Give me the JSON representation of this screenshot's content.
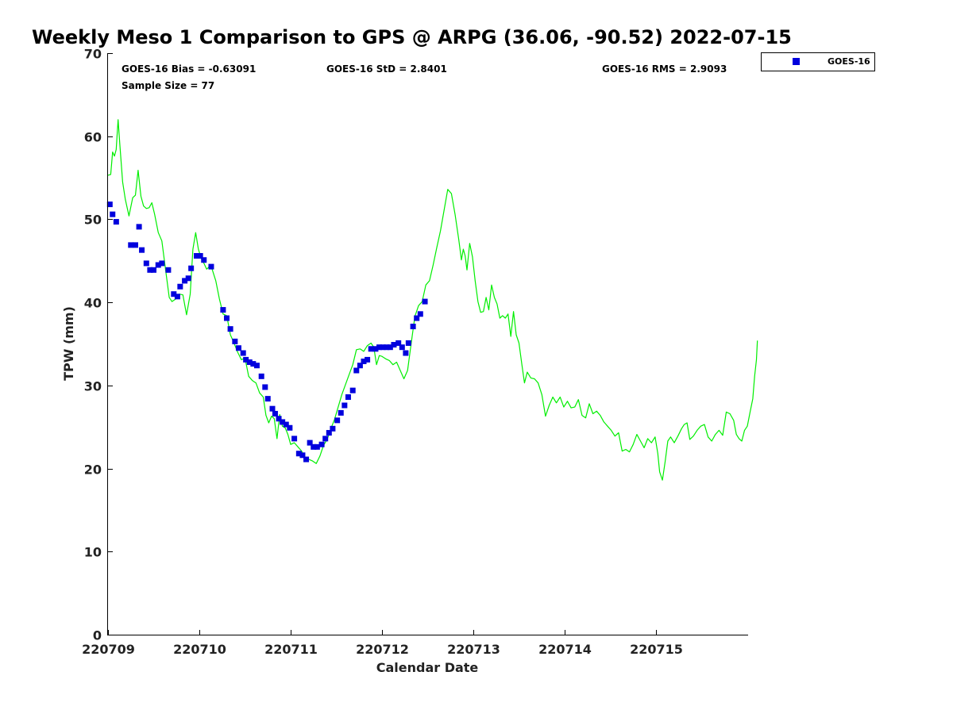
{
  "chart_data": {
    "type": "scatter",
    "title": "Weekly Meso 1 Comparison to GPS @ ARPG (36.06, -90.52) 2022-07-15",
    "xlabel": "Calendar Date",
    "ylabel": "TPW (mm)",
    "ylim": [
      0,
      70
    ],
    "xlim": [
      0,
      7
    ],
    "yticks": [
      0,
      10,
      20,
      30,
      40,
      50,
      60,
      70
    ],
    "xticks": [
      {
        "value": 0,
        "label": "220709"
      },
      {
        "value": 1,
        "label": "220710"
      },
      {
        "value": 2,
        "label": "220711"
      },
      {
        "value": 3,
        "label": "220712"
      },
      {
        "value": 4,
        "label": "220713"
      },
      {
        "value": 5,
        "label": "220714"
      },
      {
        "value": 6,
        "label": "220715"
      }
    ],
    "stats": {
      "bias": "GOES-16 Bias = -0.63091",
      "std": "GOES-16 StD = 2.8401",
      "rms": "GOES-16 RMS = 2.9093",
      "sample": "Sample Size = 77"
    },
    "legend": {
      "position": "top-right",
      "label": "GOES-16"
    },
    "colors": {
      "goes": "#0000dd",
      "gps": "#00ee00"
    },
    "grid": false,
    "series": [
      {
        "name": "GOES-16",
        "type": "scatter",
        "points": [
          [
            0.02,
            51.8
          ],
          [
            0.05,
            50.6
          ],
          [
            0.09,
            49.7
          ],
          [
            0.25,
            46.9
          ],
          [
            0.3,
            46.9
          ],
          [
            0.34,
            49.1
          ],
          [
            0.37,
            46.3
          ],
          [
            0.42,
            44.7
          ],
          [
            0.46,
            43.9
          ],
          [
            0.5,
            43.9
          ],
          [
            0.55,
            44.5
          ],
          [
            0.59,
            44.7
          ],
          [
            0.66,
            43.9
          ],
          [
            0.72,
            41.0
          ],
          [
            0.76,
            40.7
          ],
          [
            0.79,
            41.9
          ],
          [
            0.84,
            42.6
          ],
          [
            0.88,
            42.9
          ],
          [
            0.91,
            44.1
          ],
          [
            0.97,
            45.6
          ],
          [
            1.01,
            45.6
          ],
          [
            1.05,
            45.1
          ],
          [
            1.13,
            44.3
          ],
          [
            1.26,
            39.1
          ],
          [
            1.3,
            38.1
          ],
          [
            1.34,
            36.8
          ],
          [
            1.39,
            35.3
          ],
          [
            1.43,
            34.5
          ],
          [
            1.48,
            33.9
          ],
          [
            1.51,
            33.1
          ],
          [
            1.55,
            32.8
          ],
          [
            1.59,
            32.6
          ],
          [
            1.63,
            32.4
          ],
          [
            1.68,
            31.1
          ],
          [
            1.72,
            29.8
          ],
          [
            1.75,
            28.4
          ],
          [
            1.8,
            27.2
          ],
          [
            1.83,
            26.6
          ],
          [
            1.87,
            26.0
          ],
          [
            1.91,
            25.6
          ],
          [
            1.95,
            25.3
          ],
          [
            1.99,
            24.9
          ],
          [
            2.04,
            23.6
          ],
          [
            2.09,
            21.8
          ],
          [
            2.13,
            21.6
          ],
          [
            2.17,
            21.1
          ],
          [
            2.21,
            23.1
          ],
          [
            2.25,
            22.6
          ],
          [
            2.29,
            22.6
          ],
          [
            2.34,
            22.9
          ],
          [
            2.38,
            23.6
          ],
          [
            2.42,
            24.3
          ],
          [
            2.46,
            24.8
          ],
          [
            2.51,
            25.8
          ],
          [
            2.55,
            26.7
          ],
          [
            2.59,
            27.6
          ],
          [
            2.63,
            28.6
          ],
          [
            2.68,
            29.4
          ],
          [
            2.72,
            31.8
          ],
          [
            2.76,
            32.4
          ],
          [
            2.8,
            32.9
          ],
          [
            2.84,
            33.1
          ],
          [
            2.88,
            34.4
          ],
          [
            2.93,
            34.4
          ],
          [
            2.97,
            34.6
          ],
          [
            3.01,
            34.6
          ],
          [
            3.05,
            34.6
          ],
          [
            3.09,
            34.6
          ],
          [
            3.13,
            34.9
          ],
          [
            3.18,
            35.1
          ],
          [
            3.22,
            34.6
          ],
          [
            3.26,
            33.9
          ],
          [
            3.29,
            35.1
          ],
          [
            3.34,
            37.1
          ],
          [
            3.38,
            38.1
          ],
          [
            3.42,
            38.6
          ],
          [
            3.47,
            40.1
          ]
        ]
      },
      {
        "name": "",
        "type": "line",
        "points": [
          [
            0.0,
            55.3
          ],
          [
            0.03,
            55.4
          ],
          [
            0.05,
            58.1
          ],
          [
            0.07,
            57.6
          ],
          [
            0.09,
            58.4
          ],
          [
            0.11,
            62.0
          ],
          [
            0.13,
            59.0
          ],
          [
            0.16,
            54.5
          ],
          [
            0.19,
            52.4
          ],
          [
            0.23,
            50.4
          ],
          [
            0.27,
            52.6
          ],
          [
            0.3,
            52.9
          ],
          [
            0.33,
            55.9
          ],
          [
            0.36,
            52.8
          ],
          [
            0.39,
            51.6
          ],
          [
            0.42,
            51.3
          ],
          [
            0.45,
            51.4
          ],
          [
            0.48,
            52.0
          ],
          [
            0.51,
            50.6
          ],
          [
            0.55,
            48.4
          ],
          [
            0.59,
            47.4
          ],
          [
            0.63,
            44.0
          ],
          [
            0.67,
            40.6
          ],
          [
            0.7,
            40.1
          ],
          [
            0.74,
            40.4
          ],
          [
            0.78,
            41.0
          ],
          [
            0.82,
            40.9
          ],
          [
            0.86,
            38.5
          ],
          [
            0.9,
            41.0
          ],
          [
            0.93,
            46.4
          ],
          [
            0.96,
            48.4
          ],
          [
            0.99,
            46.4
          ],
          [
            1.02,
            45.3
          ],
          [
            1.05,
            44.7
          ],
          [
            1.08,
            44.0
          ],
          [
            1.11,
            44.3
          ],
          [
            1.14,
            44.0
          ],
          [
            1.18,
            42.6
          ],
          [
            1.22,
            40.4
          ],
          [
            1.26,
            38.6
          ],
          [
            1.3,
            38.4
          ],
          [
            1.34,
            36.1
          ],
          [
            1.38,
            35.1
          ],
          [
            1.42,
            34.0
          ],
          [
            1.46,
            33.1
          ],
          [
            1.5,
            33.3
          ],
          [
            1.54,
            31.1
          ],
          [
            1.58,
            30.6
          ],
          [
            1.62,
            30.3
          ],
          [
            1.66,
            29.1
          ],
          [
            1.7,
            28.6
          ],
          [
            1.73,
            26.4
          ],
          [
            1.76,
            25.5
          ],
          [
            1.79,
            26.3
          ],
          [
            1.82,
            26.0
          ],
          [
            1.85,
            23.6
          ],
          [
            1.88,
            26.5
          ],
          [
            1.91,
            25.1
          ],
          [
            1.94,
            24.9
          ],
          [
            1.97,
            24.1
          ],
          [
            2.0,
            22.9
          ],
          [
            2.04,
            23.1
          ],
          [
            2.08,
            22.6
          ],
          [
            2.12,
            22.1
          ],
          [
            2.16,
            21.1
          ],
          [
            2.2,
            21.1
          ],
          [
            2.24,
            20.9
          ],
          [
            2.28,
            20.6
          ],
          [
            2.32,
            21.5
          ],
          [
            2.36,
            22.8
          ],
          [
            2.4,
            23.5
          ],
          [
            2.44,
            24.8
          ],
          [
            2.48,
            25.9
          ],
          [
            2.52,
            27.4
          ],
          [
            2.56,
            28.9
          ],
          [
            2.6,
            30.1
          ],
          [
            2.64,
            31.3
          ],
          [
            2.68,
            32.5
          ],
          [
            2.72,
            34.3
          ],
          [
            2.76,
            34.4
          ],
          [
            2.8,
            34.1
          ],
          [
            2.84,
            34.8
          ],
          [
            2.88,
            35.1
          ],
          [
            2.91,
            34.6
          ],
          [
            2.94,
            32.5
          ],
          [
            2.97,
            33.6
          ],
          [
            3.0,
            33.5
          ],
          [
            3.04,
            33.2
          ],
          [
            3.08,
            33.0
          ],
          [
            3.12,
            32.5
          ],
          [
            3.16,
            32.8
          ],
          [
            3.2,
            31.8
          ],
          [
            3.24,
            30.8
          ],
          [
            3.28,
            31.8
          ],
          [
            3.32,
            35.1
          ],
          [
            3.36,
            38.3
          ],
          [
            3.4,
            39.6
          ],
          [
            3.44,
            40.1
          ],
          [
            3.48,
            42.1
          ],
          [
            3.52,
            42.6
          ],
          [
            3.56,
            44.5
          ],
          [
            3.6,
            46.6
          ],
          [
            3.64,
            48.6
          ],
          [
            3.68,
            51.1
          ],
          [
            3.72,
            53.6
          ],
          [
            3.76,
            53.1
          ],
          [
            3.8,
            50.6
          ],
          [
            3.84,
            47.6
          ],
          [
            3.87,
            45.1
          ],
          [
            3.89,
            46.4
          ],
          [
            3.91,
            45.6
          ],
          [
            3.93,
            43.9
          ],
          [
            3.96,
            47.1
          ],
          [
            3.99,
            45.5
          ],
          [
            4.02,
            42.6
          ],
          [
            4.05,
            40.1
          ],
          [
            4.08,
            38.8
          ],
          [
            4.11,
            38.9
          ],
          [
            4.14,
            40.6
          ],
          [
            4.17,
            39.1
          ],
          [
            4.2,
            42.1
          ],
          [
            4.23,
            40.6
          ],
          [
            4.26,
            39.8
          ],
          [
            4.29,
            38.1
          ],
          [
            4.32,
            38.4
          ],
          [
            4.35,
            38.1
          ],
          [
            4.38,
            38.6
          ],
          [
            4.41,
            35.9
          ],
          [
            4.44,
            38.9
          ],
          [
            4.47,
            36.1
          ],
          [
            4.5,
            35.1
          ],
          [
            4.53,
            32.6
          ],
          [
            4.56,
            30.3
          ],
          [
            4.59,
            31.6
          ],
          [
            4.63,
            30.9
          ],
          [
            4.67,
            30.8
          ],
          [
            4.71,
            30.3
          ],
          [
            4.75,
            28.9
          ],
          [
            4.79,
            26.3
          ],
          [
            4.83,
            27.6
          ],
          [
            4.87,
            28.6
          ],
          [
            4.91,
            27.9
          ],
          [
            4.95,
            28.6
          ],
          [
            4.99,
            27.4
          ],
          [
            5.03,
            28.1
          ],
          [
            5.07,
            27.3
          ],
          [
            5.11,
            27.4
          ],
          [
            5.15,
            28.3
          ],
          [
            5.19,
            26.4
          ],
          [
            5.23,
            26.1
          ],
          [
            5.27,
            27.8
          ],
          [
            5.31,
            26.6
          ],
          [
            5.35,
            26.9
          ],
          [
            5.39,
            26.4
          ],
          [
            5.43,
            25.6
          ],
          [
            5.47,
            25.1
          ],
          [
            5.51,
            24.6
          ],
          [
            5.55,
            23.9
          ],
          [
            5.59,
            24.3
          ],
          [
            5.63,
            22.1
          ],
          [
            5.67,
            22.3
          ],
          [
            5.71,
            22.0
          ],
          [
            5.75,
            22.9
          ],
          [
            5.79,
            24.1
          ],
          [
            5.83,
            23.3
          ],
          [
            5.87,
            22.5
          ],
          [
            5.91,
            23.6
          ],
          [
            5.95,
            23.1
          ],
          [
            5.99,
            23.8
          ],
          [
            6.02,
            21.8
          ],
          [
            6.04,
            19.6
          ],
          [
            6.07,
            18.6
          ],
          [
            6.1,
            20.8
          ],
          [
            6.13,
            23.3
          ],
          [
            6.16,
            23.8
          ],
          [
            6.2,
            23.1
          ],
          [
            6.24,
            23.9
          ],
          [
            6.28,
            24.8
          ],
          [
            6.31,
            25.3
          ],
          [
            6.34,
            25.5
          ],
          [
            6.37,
            23.5
          ],
          [
            6.41,
            23.9
          ],
          [
            6.45,
            24.6
          ],
          [
            6.49,
            25.1
          ],
          [
            6.53,
            25.3
          ],
          [
            6.57,
            23.8
          ],
          [
            6.61,
            23.3
          ],
          [
            6.65,
            24.1
          ],
          [
            6.69,
            24.6
          ],
          [
            6.73,
            24.0
          ],
          [
            6.77,
            26.8
          ],
          [
            6.81,
            26.6
          ],
          [
            6.85,
            25.8
          ],
          [
            6.88,
            24.1
          ],
          [
            6.91,
            23.6
          ],
          [
            6.94,
            23.3
          ],
          [
            6.97,
            24.6
          ],
          [
            7.0,
            25.1
          ],
          [
            7.03,
            26.8
          ],
          [
            7.06,
            28.4
          ],
          [
            7.08,
            31.1
          ],
          [
            7.1,
            33.1
          ],
          [
            7.11,
            35.4
          ]
        ]
      }
    ]
  }
}
